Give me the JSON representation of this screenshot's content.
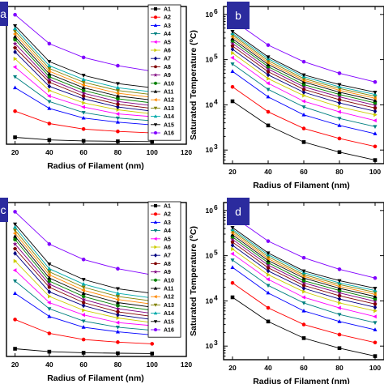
{
  "chart_data": [
    {
      "panel": "a",
      "type": "line",
      "x": [
        20,
        40,
        60,
        80,
        100
      ],
      "xlabel": "Radius of Filament (nm)",
      "ylabel": "",
      "xlim": [
        20,
        120
      ],
      "xticks": [
        "20",
        "40",
        "60",
        "80",
        "100",
        "120"
      ],
      "ylog": false,
      "legend": "top-right",
      "series": [
        {
          "name": "A1",
          "values": [
            0.05,
            0.031,
            0.024,
            0.021,
            0.019
          ]
        },
        {
          "name": "A2",
          "values": [
            0.24,
            0.15,
            0.11,
            0.093,
            0.082
          ]
        },
        {
          "name": "A3",
          "values": [
            0.41,
            0.26,
            0.19,
            0.16,
            0.14
          ]
        },
        {
          "name": "A4",
          "values": [
            0.49,
            0.31,
            0.23,
            0.19,
            0.17
          ]
        },
        {
          "name": "A5",
          "values": [
            0.56,
            0.35,
            0.27,
            0.22,
            0.2
          ]
        },
        {
          "name": "A6",
          "values": [
            0.62,
            0.39,
            0.3,
            0.25,
            0.22
          ]
        },
        {
          "name": "A7",
          "values": [
            0.67,
            0.42,
            0.33,
            0.27,
            0.24
          ]
        },
        {
          "name": "A8",
          "values": [
            0.7,
            0.45,
            0.35,
            0.29,
            0.26
          ]
        },
        {
          "name": "A9",
          "values": [
            0.73,
            0.47,
            0.37,
            0.31,
            0.28
          ]
        },
        {
          "name": "A10",
          "values": [
            0.76,
            0.49,
            0.39,
            0.33,
            0.3
          ]
        },
        {
          "name": "A11",
          "values": [
            0.78,
            0.51,
            0.41,
            0.35,
            0.32
          ]
        },
        {
          "name": "A12",
          "values": [
            0.8,
            0.53,
            0.43,
            0.37,
            0.34
          ]
        },
        {
          "name": "A13",
          "values": [
            0.82,
            0.55,
            0.45,
            0.39,
            0.36
          ]
        },
        {
          "name": "A14",
          "values": [
            0.84,
            0.57,
            0.47,
            0.41,
            0.38
          ]
        },
        {
          "name": "A15",
          "values": [
            0.86,
            0.6,
            0.5,
            0.44,
            0.41
          ]
        },
        {
          "name": "A16",
          "values": [
            0.94,
            0.73,
            0.63,
            0.57,
            0.53
          ]
        }
      ]
    },
    {
      "panel": "b",
      "type": "line",
      "x": [
        20,
        40,
        60,
        80,
        100
      ],
      "xlabel": "Radius of Filament (nm)",
      "ylabel": "Saturated Temperature (°C)",
      "ylog": true,
      "ylim": [
        500,
        1500000
      ],
      "yticks": [
        "10",
        "10",
        "10",
        "10"
      ],
      "yticks_exp": [
        "3",
        "4",
        "5",
        "6"
      ],
      "xticks": [
        "20",
        "40",
        "60",
        "80",
        "100"
      ],
      "series": [
        {
          "name": "A1",
          "values": [
            12000,
            3500,
            1500,
            900,
            600
          ]
        },
        {
          "name": "A2",
          "values": [
            25000,
            7000,
            3000,
            1800,
            1200
          ]
        },
        {
          "name": "A3",
          "values": [
            55000,
            15000,
            6000,
            3500,
            2300
          ]
        },
        {
          "name": "A4",
          "values": [
            80000,
            22000,
            9000,
            5000,
            3300
          ]
        },
        {
          "name": "A5",
          "values": [
            110000,
            30000,
            12000,
            7000,
            4500
          ]
        },
        {
          "name": "A6",
          "values": [
            140000,
            38000,
            16000,
            9000,
            6000
          ]
        },
        {
          "name": "A7",
          "values": [
            170000,
            46000,
            19000,
            11000,
            7200
          ]
        },
        {
          "name": "A8",
          "values": [
            200000,
            54000,
            22000,
            13000,
            8500
          ]
        },
        {
          "name": "A9",
          "values": [
            230000,
            62000,
            25000,
            15000,
            9800
          ]
        },
        {
          "name": "A10",
          "values": [
            260000,
            70000,
            28000,
            17000,
            11000
          ]
        },
        {
          "name": "A11",
          "values": [
            290000,
            78000,
            32000,
            19000,
            12500
          ]
        },
        {
          "name": "A12",
          "values": [
            320000,
            86000,
            35000,
            21000,
            14000
          ]
        },
        {
          "name": "A13",
          "values": [
            350000,
            95000,
            38000,
            23000,
            15500
          ]
        },
        {
          "name": "A14",
          "values": [
            380000,
            105000,
            42000,
            25000,
            17000
          ]
        },
        {
          "name": "A15",
          "values": [
            420000,
            115000,
            46000,
            28000,
            19000
          ]
        },
        {
          "name": "A16",
          "values": [
            750000,
            210000,
            90000,
            50000,
            32000
          ]
        }
      ]
    },
    {
      "panel": "c",
      "type": "line",
      "x": [
        20,
        40,
        60,
        80,
        100
      ],
      "xlabel": "Radius of Filament (nm)",
      "ylabel": "",
      "xlim": [
        20,
        120
      ],
      "xticks": [
        "20",
        "40",
        "60",
        "80",
        "100",
        "120"
      ],
      "ylog": false,
      "legend": "top-right",
      "series": [
        {
          "name": "A1",
          "values": [
            0.05,
            0.031,
            0.024,
            0.021,
            0.019
          ]
        },
        {
          "name": "A2",
          "values": [
            0.24,
            0.15,
            0.11,
            0.093,
            0.082
          ]
        },
        {
          "name": "A3",
          "values": [
            0.41,
            0.26,
            0.19,
            0.16,
            0.14
          ]
        },
        {
          "name": "A4",
          "values": [
            0.49,
            0.31,
            0.23,
            0.19,
            0.17
          ]
        },
        {
          "name": "A5",
          "values": [
            0.56,
            0.35,
            0.27,
            0.22,
            0.2
          ]
        },
        {
          "name": "A6",
          "values": [
            0.62,
            0.39,
            0.3,
            0.25,
            0.22
          ]
        },
        {
          "name": "A7",
          "values": [
            0.67,
            0.42,
            0.33,
            0.27,
            0.24
          ]
        },
        {
          "name": "A8",
          "values": [
            0.7,
            0.45,
            0.35,
            0.29,
            0.26
          ]
        },
        {
          "name": "A9",
          "values": [
            0.73,
            0.47,
            0.37,
            0.31,
            0.28
          ]
        },
        {
          "name": "A10",
          "values": [
            0.76,
            0.49,
            0.39,
            0.33,
            0.3
          ]
        },
        {
          "name": "A11",
          "values": [
            0.78,
            0.51,
            0.41,
            0.35,
            0.32
          ]
        },
        {
          "name": "A12",
          "values": [
            0.8,
            0.53,
            0.43,
            0.37,
            0.34
          ]
        },
        {
          "name": "A13",
          "values": [
            0.82,
            0.55,
            0.45,
            0.39,
            0.36
          ]
        },
        {
          "name": "A14",
          "values": [
            0.84,
            0.57,
            0.47,
            0.41,
            0.38
          ]
        },
        {
          "name": "A15",
          "values": [
            0.86,
            0.6,
            0.5,
            0.44,
            0.41
          ]
        },
        {
          "name": "A16",
          "values": [
            0.94,
            0.73,
            0.63,
            0.57,
            0.53
          ]
        }
      ]
    },
    {
      "panel": "d",
      "type": "line",
      "x": [
        20,
        40,
        60,
        80,
        100
      ],
      "xlabel": "Radius of Filament (nm)",
      "ylabel": "Saturated Temperature (°C)",
      "ylog": true,
      "ylim": [
        500,
        1500000
      ],
      "yticks": [
        "10",
        "10",
        "10",
        "10"
      ],
      "yticks_exp": [
        "3",
        "4",
        "5",
        "6"
      ],
      "xticks": [
        "20",
        "40",
        "60",
        "80",
        "100"
      ],
      "series": [
        {
          "name": "A1",
          "values": [
            12000,
            3500,
            1500,
            900,
            600
          ]
        },
        {
          "name": "A2",
          "values": [
            25000,
            7000,
            3000,
            1800,
            1200
          ]
        },
        {
          "name": "A3",
          "values": [
            55000,
            15000,
            6000,
            3500,
            2300
          ]
        },
        {
          "name": "A4",
          "values": [
            80000,
            22000,
            9000,
            5000,
            3300
          ]
        },
        {
          "name": "A5",
          "values": [
            110000,
            30000,
            12000,
            7000,
            4500
          ]
        },
        {
          "name": "A6",
          "values": [
            140000,
            38000,
            16000,
            9000,
            6000
          ]
        },
        {
          "name": "A7",
          "values": [
            170000,
            46000,
            19000,
            11000,
            7200
          ]
        },
        {
          "name": "A8",
          "values": [
            200000,
            54000,
            22000,
            13000,
            8500
          ]
        },
        {
          "name": "A9",
          "values": [
            230000,
            62000,
            25000,
            15000,
            9800
          ]
        },
        {
          "name": "A10",
          "values": [
            260000,
            70000,
            28000,
            17000,
            11000
          ]
        },
        {
          "name": "A11",
          "values": [
            290000,
            78000,
            32000,
            19000,
            12500
          ]
        },
        {
          "name": "A12",
          "values": [
            320000,
            86000,
            35000,
            21000,
            14000
          ]
        },
        {
          "name": "A13",
          "values": [
            350000,
            95000,
            38000,
            23000,
            15500
          ]
        },
        {
          "name": "A14",
          "values": [
            380000,
            105000,
            42000,
            25000,
            17000
          ]
        },
        {
          "name": "A15",
          "values": [
            420000,
            115000,
            46000,
            28000,
            19000
          ]
        },
        {
          "name": "A16",
          "values": [
            750000,
            210000,
            90000,
            50000,
            32000
          ]
        }
      ]
    }
  ],
  "series_styles": [
    {
      "color": "#000000",
      "marker": "square"
    },
    {
      "color": "#ff0000",
      "marker": "circle"
    },
    {
      "color": "#0000ff",
      "marker": "triangle-up"
    },
    {
      "color": "#008080",
      "marker": "triangle-down"
    },
    {
      "color": "#ff00ff",
      "marker": "triangle-left"
    },
    {
      "color": "#cccc00",
      "marker": "triangle-right"
    },
    {
      "color": "#000080",
      "marker": "diamond"
    },
    {
      "color": "#800000",
      "marker": "pentagon"
    },
    {
      "color": "#800080",
      "marker": "star"
    },
    {
      "color": "#008000",
      "marker": "hexagon"
    },
    {
      "color": "#000000",
      "marker": "triangle-up"
    },
    {
      "color": "#ff8800",
      "marker": "triangle-left"
    },
    {
      "color": "#808000",
      "marker": "triangle-down"
    },
    {
      "color": "#00aaaa",
      "marker": "triangle-up"
    },
    {
      "color": "#000000",
      "marker": "triangle-down"
    },
    {
      "color": "#8000ff",
      "marker": "circle"
    }
  ],
  "panel_tag_color": "#2b2b9e"
}
